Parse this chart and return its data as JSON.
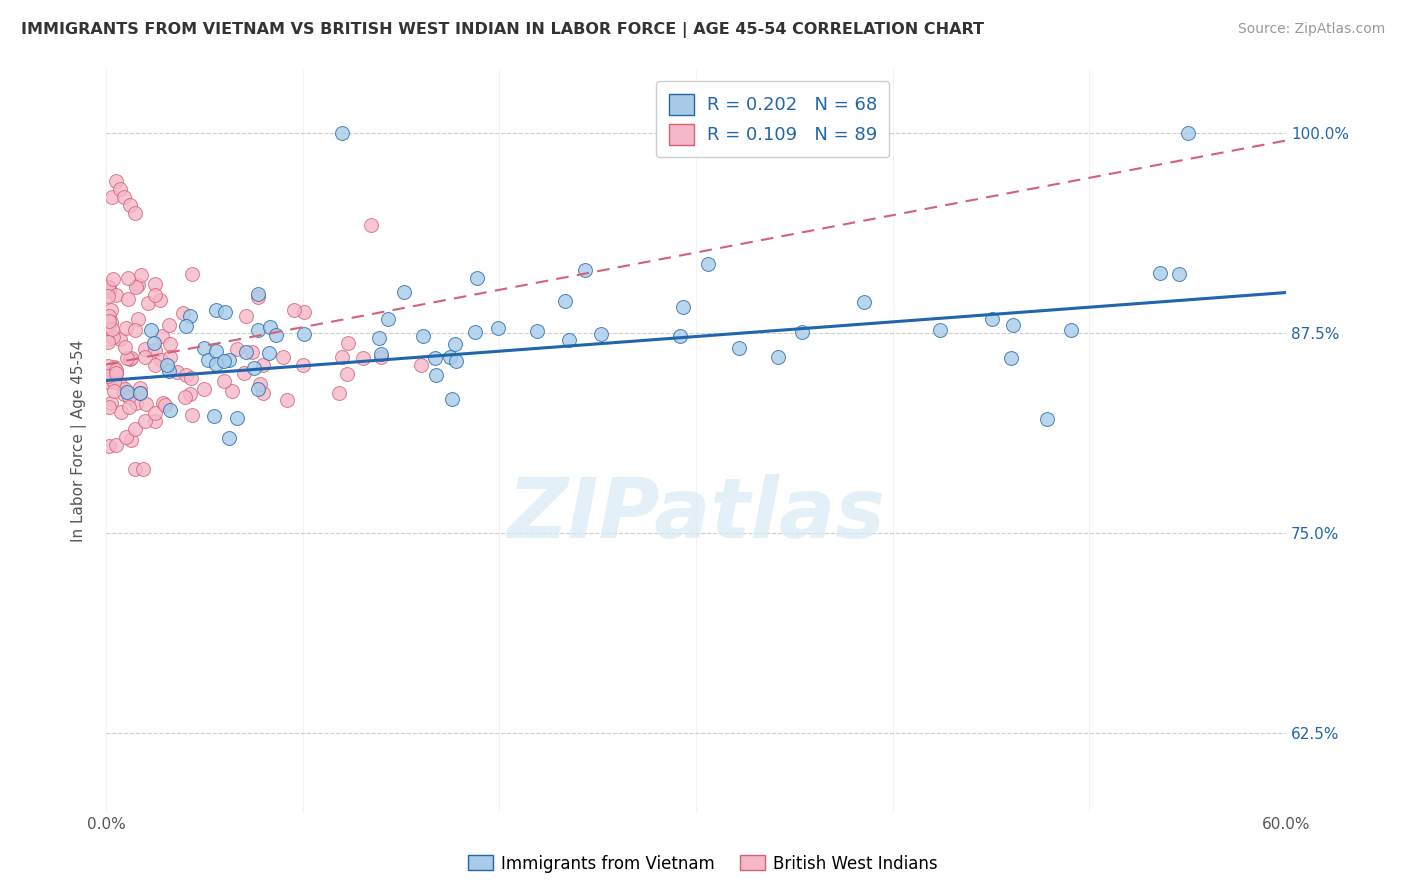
{
  "title": "IMMIGRANTS FROM VIETNAM VS BRITISH WEST INDIAN IN LABOR FORCE | AGE 45-54 CORRELATION CHART",
  "source": "Source: ZipAtlas.com",
  "ylabel": "In Labor Force | Age 45-54",
  "xlim": [
    0.0,
    0.6
  ],
  "ylim": [
    0.575,
    1.04
  ],
  "xtick_positions": [
    0.0,
    0.1,
    0.2,
    0.3,
    0.4,
    0.5,
    0.6
  ],
  "xticklabels": [
    "0.0%",
    "",
    "",
    "",
    "",
    "",
    "60.0%"
  ],
  "ytick_positions": [
    0.625,
    0.75,
    0.875,
    1.0
  ],
  "ytick_labels": [
    "62.5%",
    "75.0%",
    "87.5%",
    "100.0%"
  ],
  "legend1_label": "Immigrants from Vietnam",
  "legend2_label": "British West Indians",
  "R_blue": 0.202,
  "N_blue": 68,
  "R_pink": 0.109,
  "N_pink": 89,
  "blue_color": "#a8cce8",
  "pink_color": "#f4b8c8",
  "blue_line_color": "#2166ac",
  "pink_line_color": "#d4607a",
  "watermark_text": "ZIPatlas",
  "blue_intercept": 0.845,
  "blue_slope": 0.07,
  "pink_intercept": 0.865,
  "pink_slope": 0.12
}
